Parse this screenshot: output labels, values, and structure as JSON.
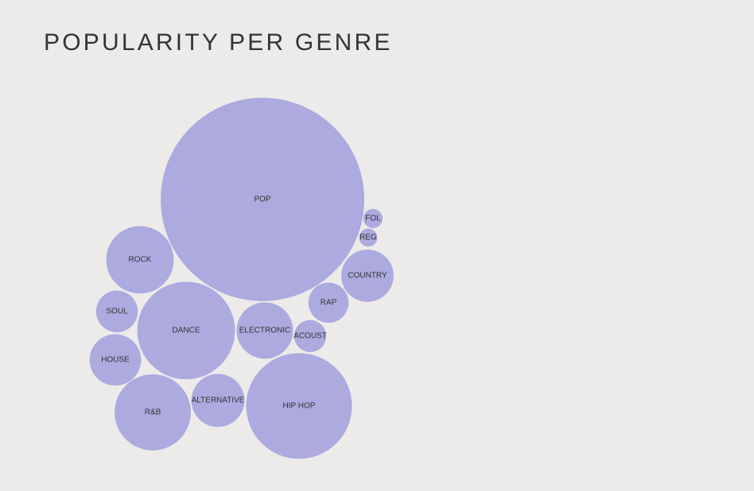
{
  "chart_data": {
    "type": "bubble",
    "title": "POPULARITY PER GENRE",
    "color": "#acaadf",
    "bubbles": [
      {
        "label": "POP",
        "value": 100
      },
      {
        "label": "HIP HOP",
        "value": 27
      },
      {
        "label": "DANCE",
        "value": 23
      },
      {
        "label": "R&B",
        "value": 14
      },
      {
        "label": "ROCK",
        "value": 11
      },
      {
        "label": "ELECTRONIC",
        "value": 7.7
      },
      {
        "label": "COUNTRY",
        "value": 6.6
      },
      {
        "label": "ALTERNATIVE",
        "value": 6.8
      },
      {
        "label": "HOUSE",
        "value": 6.4
      },
      {
        "label": "SOUL",
        "value": 4.2
      },
      {
        "label": "RAP",
        "value": 3.9
      },
      {
        "label": "ACOUST",
        "value": 2.5
      },
      {
        "label": "FOL",
        "value": 0.9
      },
      {
        "label": "REG",
        "value": 0.8
      }
    ]
  }
}
